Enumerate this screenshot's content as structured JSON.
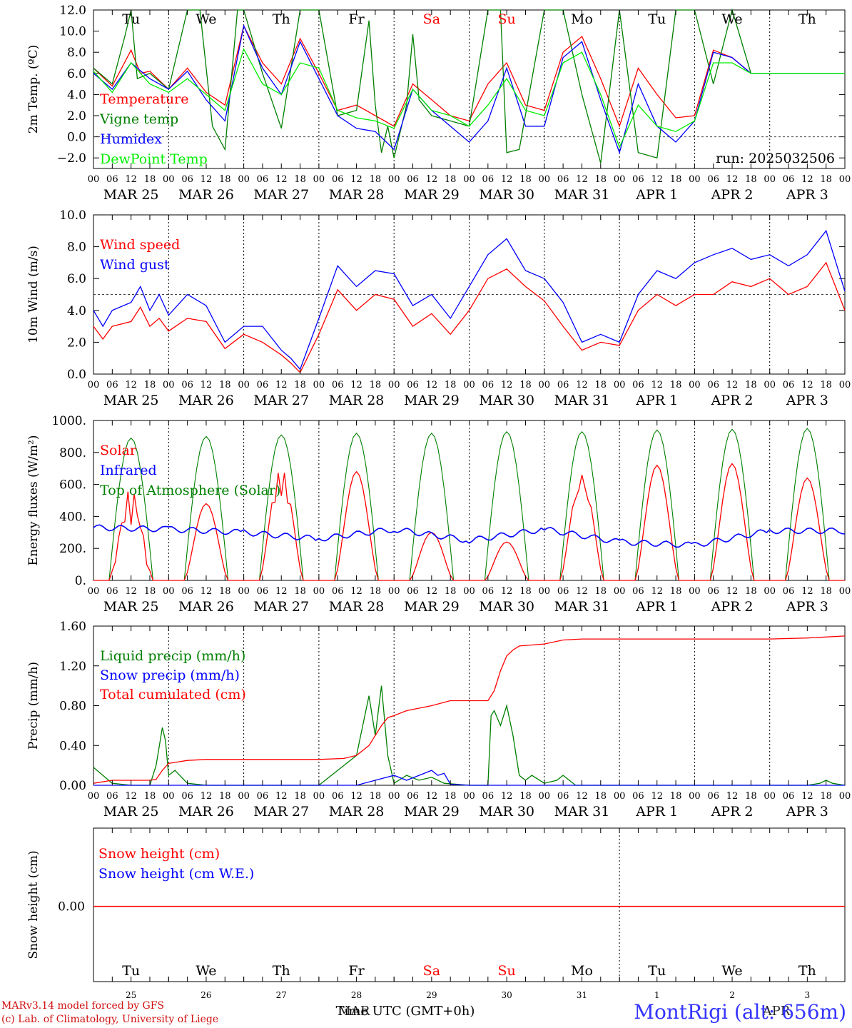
{
  "footer": {
    "credit_line1": "MARv3.14 model forced by GFS",
    "credit_line2": "(c) Lab. of Climatology, University of Liege",
    "station": "MontRigi (alt: 656m)",
    "time_label": "Time UTC (GMT+0h)",
    "month_label_1": "MAR",
    "month_label_2": "APR"
  },
  "colors": {
    "red": "#ff0000",
    "green": "#008000",
    "blue": "#0000ff",
    "lightgreen": "#00ee00",
    "dark": "#000000"
  },
  "chart_data": {
    "days": 10,
    "hour_ticks": [
      "00",
      "06",
      "12",
      "18"
    ],
    "end_tick": "00",
    "date_labels": [
      "MAR 25",
      "MAR 26",
      "MAR 27",
      "MAR 28",
      "MAR 29",
      "MAR 30",
      "MAR 31",
      "APR  1",
      "APR  2",
      "APR  3"
    ],
    "weekdays": [
      "Tu",
      "We",
      "Th",
      "Fr",
      "Sa",
      "Su",
      "Mo",
      "Tu",
      "We",
      "Th"
    ],
    "weekend_flags": [
      false,
      false,
      false,
      false,
      true,
      true,
      false,
      false,
      false,
      false
    ],
    "bottom_day_numbers": [
      "25",
      "26",
      "27",
      "28",
      "29",
      "30",
      "31",
      "1",
      "2",
      "3"
    ],
    "panels": [
      {
        "id": "temperature",
        "type": "line",
        "ylabel": "2m Temp. (ºC)",
        "ylim": [
          -3,
          12
        ],
        "yticks": [
          -2,
          0,
          2,
          4,
          6,
          8,
          10,
          12
        ],
        "ytick_labels": [
          "−2.0",
          "0.0",
          "2.0",
          "4.0",
          "6.0",
          "8.0",
          "10.0",
          "12.0"
        ],
        "ref_line": 0,
        "annotation": "run: 2025032506",
        "show_weekdays": true,
        "series": [
          {
            "name": "Temperature",
            "color": "red",
            "x": [
              0,
              6,
              12,
              15,
              18,
              24,
              30,
              36,
              42,
              48,
              54,
              60,
              66,
              72,
              78,
              84,
              90,
              96,
              102,
              108,
              114,
              120,
              126,
              132,
              138,
              144,
              150,
              156,
              162,
              168,
              174,
              180,
              186,
              192,
              198,
              204,
              210,
              216,
              222,
              228,
              234,
              240
            ],
            "y": [
              6.5,
              4.8,
              8.2,
              6.0,
              6.2,
              4.5,
              6.5,
              4.2,
              3.0,
              10.5,
              7.0,
              5.0,
              9.3,
              6.0,
              2.5,
              3.0,
              2.0,
              1.0,
              5.0,
              3.5,
              2.0,
              1.5,
              5.0,
              7.0,
              3.0,
              2.5,
              8.0,
              9.5,
              5.5,
              1.0,
              6.5,
              4.0,
              1.8,
              2.0,
              8.2,
              7.5,
              6.0,
              6.0,
              6.0,
              6.0,
              6.0,
              6.0
            ]
          },
          {
            "name": "Vigne temp",
            "color": "green",
            "x": [
              0,
              6,
              10,
              12,
              14,
              18,
              24,
              30,
              34,
              38,
              42,
              46,
              48,
              54,
              60,
              66,
              72,
              78,
              84,
              88,
              90,
              92,
              94,
              96,
              100,
              102,
              104,
              108,
              114,
              120,
              126,
              130,
              132,
              136,
              144,
              150,
              156,
              162,
              168,
              174,
              180,
              186,
              192,
              198,
              204,
              210,
              216,
              222,
              228,
              234,
              240
            ],
            "y": [
              6.5,
              5.0,
              9.5,
              12,
              5.5,
              6.0,
              4.5,
              12,
              12,
              1.0,
              -1.2,
              12,
              12,
              6.0,
              0.8,
              12,
              12,
              2.0,
              2.5,
              11,
              3.0,
              -1.5,
              1.0,
              -2.0,
              3.0,
              9.7,
              3.5,
              2.0,
              1.5,
              1.0,
              12,
              12,
              -1.5,
              -1.2,
              12,
              12,
              4.0,
              -2.5,
              12,
              -1.5,
              -2.0,
              12,
              12,
              5.0,
              12,
              6.0,
              6.0,
              6.0,
              6.0,
              6.0,
              6.0
            ]
          },
          {
            "name": "Humidex",
            "color": "blue",
            "x": [
              0,
              6,
              12,
              18,
              24,
              30,
              36,
              42,
              48,
              54,
              60,
              66,
              72,
              78,
              84,
              90,
              96,
              102,
              108,
              114,
              120,
              126,
              132,
              138,
              144,
              150,
              156,
              162,
              168,
              174,
              180,
              186,
              192,
              198,
              204,
              210,
              216,
              222,
              228,
              234,
              240
            ],
            "y": [
              6.0,
              4.5,
              7.0,
              5.5,
              4.5,
              6.2,
              3.5,
              1.5,
              10.5,
              6.5,
              4.0,
              9.0,
              5.5,
              2.0,
              0.8,
              0.5,
              -1.2,
              4.5,
              2.5,
              1.0,
              -0.5,
              1.5,
              6.5,
              1.0,
              1.0,
              7.5,
              9.0,
              3.5,
              -1.5,
              5.0,
              1.0,
              -0.5,
              1.5,
              8.0,
              7.5,
              6.0,
              6.0,
              6.0,
              6.0,
              6.0,
              6.0
            ]
          },
          {
            "name": "DewPoint Temp",
            "color": "lightgreen",
            "x": [
              0,
              6,
              12,
              18,
              24,
              30,
              36,
              42,
              48,
              54,
              60,
              66,
              72,
              78,
              84,
              90,
              96,
              102,
              108,
              114,
              120,
              126,
              132,
              138,
              144,
              150,
              156,
              162,
              168,
              174,
              180,
              186,
              192,
              198,
              204,
              210,
              216,
              222,
              228,
              234,
              240
            ],
            "y": [
              6.2,
              4.2,
              7.0,
              5.0,
              4.2,
              5.5,
              4.0,
              2.5,
              8.3,
              5.0,
              4.0,
              7.0,
              6.5,
              2.5,
              1.8,
              1.5,
              0.8,
              4.5,
              2.5,
              2.0,
              1.0,
              3.0,
              5.5,
              2.5,
              2.0,
              7.0,
              8.0,
              4.0,
              -1.0,
              3.0,
              1.0,
              0.5,
              1.5,
              7.0,
              7.0,
              6.0,
              6.0,
              6.0,
              6.0,
              6.0,
              6.0
            ]
          }
        ]
      },
      {
        "id": "wind",
        "type": "line",
        "ylabel": "10m Wind (m/s)",
        "ylim": [
          0,
          10
        ],
        "yticks": [
          0,
          2,
          4,
          6,
          8,
          10
        ],
        "ytick_labels": [
          "0.0",
          "2.0",
          "4.0",
          "6.0",
          "8.0",
          "10.0"
        ],
        "ref_line": 5,
        "series": [
          {
            "name": "Wind speed",
            "color": "red",
            "x": [
              0,
              3,
              6,
              12,
              15,
              18,
              21,
              24,
              30,
              36,
              42,
              48,
              54,
              60,
              63,
              66,
              72,
              78,
              84,
              90,
              96,
              102,
              108,
              114,
              120,
              126,
              132,
              138,
              144,
              150,
              156,
              162,
              168,
              174,
              180,
              186,
              192,
              198,
              204,
              210,
              216,
              222,
              228,
              234,
              240
            ],
            "y": [
              3.0,
              2.2,
              3.0,
              3.3,
              4.2,
              3.0,
              3.5,
              2.7,
              3.5,
              3.3,
              1.6,
              2.5,
              2.0,
              1.2,
              0.7,
              0.1,
              2.5,
              5.3,
              4.0,
              5.0,
              4.7,
              3.0,
              3.8,
              2.5,
              4.0,
              6.0,
              6.6,
              5.5,
              4.6,
              3.0,
              1.5,
              2.0,
              1.8,
              4.0,
              5.0,
              4.3,
              5.0,
              5.0,
              5.8,
              5.5,
              6.0,
              5.0,
              5.5,
              7.0,
              4.0
            ]
          },
          {
            "name": "Wind gust",
            "color": "blue",
            "x": [
              0,
              3,
              6,
              12,
              15,
              18,
              21,
              24,
              30,
              36,
              42,
              48,
              54,
              60,
              63,
              66,
              72,
              78,
              84,
              90,
              96,
              102,
              108,
              114,
              120,
              126,
              132,
              138,
              144,
              150,
              156,
              162,
              168,
              174,
              180,
              186,
              192,
              198,
              204,
              210,
              216,
              222,
              228,
              234,
              240
            ],
            "y": [
              4.0,
              3.0,
              4.0,
              4.5,
              5.5,
              4.0,
              5.0,
              3.7,
              5.0,
              4.3,
              2.0,
              3.0,
              3.0,
              1.5,
              1.0,
              0.3,
              3.5,
              6.8,
              5.5,
              6.5,
              6.3,
              4.3,
              5.0,
              3.5,
              5.5,
              7.5,
              8.5,
              6.5,
              6.0,
              4.5,
              2.0,
              2.5,
              2.0,
              5.0,
              6.5,
              6.0,
              7.0,
              7.5,
              7.9,
              7.2,
              7.5,
              6.8,
              7.5,
              9.0,
              5.2
            ]
          }
        ]
      },
      {
        "id": "energy",
        "type": "line",
        "ylabel": "Energy fluxes (W/m²)",
        "ylim": [
          0,
          1000
        ],
        "yticks": [
          0,
          200,
          400,
          600,
          800,
          1000
        ],
        "ytick_labels": [
          "0.",
          "200.",
          "400.",
          "600.",
          "800.",
          "1000."
        ],
        "toa_peaks": [
          890,
          900,
          910,
          920,
          920,
          930,
          930,
          940,
          945,
          950
        ],
        "solar_peaks": [
          580,
          480,
          700,
          680,
          300,
          240,
          660,
          720,
          730,
          640
        ],
        "infrared_base": [
          330,
          320,
          300,
          260,
          320,
          250,
          320,
          240,
          220,
          310
        ],
        "series": [
          {
            "name": "Solar",
            "color": "red"
          },
          {
            "name": "Infrared",
            "color": "blue"
          },
          {
            "name": "Top of Atmosphere (Solar)",
            "color": "green"
          }
        ]
      },
      {
        "id": "precip",
        "type": "line",
        "ylabel": "Precip (mm/h)",
        "ylim": [
          0,
          1.6
        ],
        "yticks": [
          0,
          0.4,
          0.8,
          1.2,
          1.6
        ],
        "ytick_labels": [
          "0.00",
          "0.40",
          "0.80",
          "1.20",
          "1.60"
        ],
        "series": [
          {
            "name": "Liquid precip (mm/h)",
            "color": "green",
            "x": [
              0,
              3,
              6,
              12,
              18,
              20,
              22,
              23,
              24,
              26,
              30,
              36,
              72,
              84,
              88,
              90,
              92,
              94,
              96,
              100,
              104,
              108,
              112,
              120,
              126,
              127,
              128,
              130,
              132,
              134,
              136,
              138,
              140,
              144,
              148,
              150,
              152,
              154,
              156,
              168,
              216,
              228,
              232,
              234,
              236,
              240
            ],
            "y": [
              0.18,
              0.1,
              0.02,
              0,
              0,
              0.2,
              0.58,
              0.45,
              0.1,
              0.15,
              0.02,
              0,
              0,
              0.3,
              0.9,
              0.5,
              1.0,
              0.3,
              0.02,
              0.1,
              0.05,
              0.08,
              0.02,
              0,
              0,
              0.7,
              0.75,
              0.6,
              0.8,
              0.5,
              0.1,
              0.05,
              0.1,
              0.02,
              0.05,
              0.1,
              0.05,
              0,
              0,
              0,
              0,
              0,
              0.02,
              0.05,
              0.02,
              0
            ]
          },
          {
            "name": "Snow precip (mm/h)",
            "color": "blue",
            "x": [
              0,
              84,
              90,
              96,
              100,
              104,
              108,
              110,
              112,
              114,
              120,
              240
            ],
            "y": [
              0,
              0,
              0.05,
              0.1,
              0.05,
              0.1,
              0.15,
              0.1,
              0.12,
              0.01,
              0,
              0
            ]
          },
          {
            "name": "Total cumulated (cm)",
            "color": "red",
            "x": [
              0,
              6,
              12,
              18,
              20,
              22,
              24,
              30,
              36,
              72,
              80,
              84,
              88,
              90,
              92,
              94,
              96,
              100,
              108,
              114,
              120,
              126,
              128,
              130,
              132,
              134,
              136,
              140,
              144,
              150,
              156,
              168,
              216,
              228,
              240
            ],
            "y": [
              0.02,
              0.05,
              0.05,
              0.05,
              0.06,
              0.15,
              0.22,
              0.25,
              0.26,
              0.26,
              0.27,
              0.3,
              0.4,
              0.5,
              0.6,
              0.68,
              0.7,
              0.75,
              0.8,
              0.85,
              0.85,
              0.85,
              0.95,
              1.15,
              1.3,
              1.36,
              1.4,
              1.41,
              1.42,
              1.46,
              1.47,
              1.47,
              1.47,
              1.48,
              1.5
            ]
          }
        ]
      },
      {
        "id": "snow",
        "type": "line",
        "ylabel": "Snow height (cm)",
        "ytick_labels": [
          "0.00"
        ],
        "series": [
          {
            "name": "Snow height (cm)",
            "color": "red"
          },
          {
            "name": "Snow height (cm W.E.)",
            "color": "blue"
          }
        ]
      }
    ]
  }
}
